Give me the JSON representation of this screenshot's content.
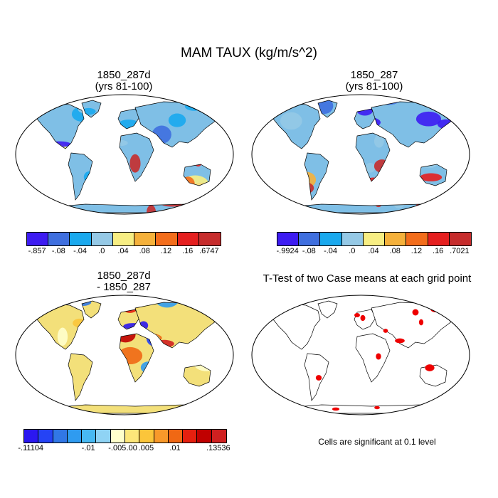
{
  "figure_title": "MAM TAUX (kg/m/s^2)",
  "panels": [
    {
      "id": "p1",
      "title_line1": "1850_287d",
      "title_line2": "(yrs 81-100)"
    },
    {
      "id": "p2",
      "title_line1": "1850_287",
      "title_line2": "(yrs 81-100)"
    },
    {
      "id": "p3",
      "title_line1": "1850_287d",
      "title_line2": "- 1850_287"
    },
    {
      "id": "p4",
      "title_line1": "T-Test of two Case means at each grid point",
      "title_line2": ""
    }
  ],
  "colorbars": {
    "cb1": {
      "colors": [
        "#3d1cf2",
        "#3f6fdf",
        "#1aa9ee",
        "#95c9e6",
        "#f7ee83",
        "#f5b13b",
        "#f36d1b",
        "#e51f1f",
        "#c62c2c"
      ],
      "labels": [
        "-.857",
        "-.08",
        "-.04",
        ".0",
        ".04",
        ".08",
        ".12",
        ".16",
        ".6747"
      ]
    },
    "cb2": {
      "colors": [
        "#3d1cf2",
        "#3f6fdf",
        "#1aa9ee",
        "#95c9e6",
        "#f7ee83",
        "#f5b13b",
        "#f36d1b",
        "#e51f1f",
        "#c62c2c"
      ],
      "labels": [
        "-.9924",
        "-.08",
        "-.04",
        ".0",
        ".04",
        ".08",
        ".12",
        ".16",
        ".7021"
      ]
    },
    "cb3": {
      "colors": [
        "#2b17f0",
        "#2543f5",
        "#3177e6",
        "#2f9bf0",
        "#48b9f2",
        "#8fd3f4",
        "#ffffcc",
        "#fde77a",
        "#fbc53a",
        "#f8992a",
        "#f06814",
        "#e5200f",
        "#c00000",
        "#d02020"
      ],
      "labels": [
        "-.11104",
        "-.01",
        "-.005",
        ".00",
        ".005",
        ".01",
        ".13536"
      ]
    }
  },
  "significance_note": "Cells are significant at 0.1 level",
  "map_colors": {
    "ocean": "#ffffff",
    "coast": "#000000",
    "land_base_p1": "#7fbfe6",
    "land_base_p3": "#f3e07a",
    "significant": "#ee0000"
  }
}
